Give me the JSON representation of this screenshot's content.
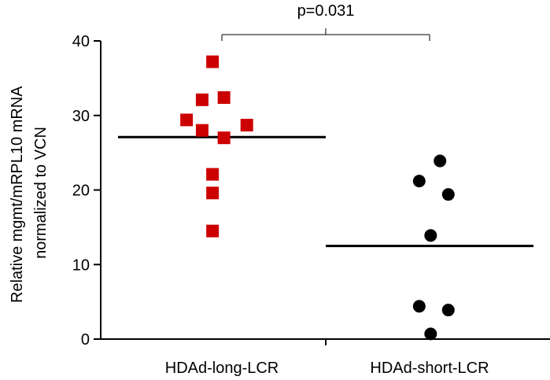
{
  "chart_data": {
    "type": "scatter",
    "title": "",
    "ylabel_lines": [
      "Relative mgmt/mRPL10 mRNA",
      "normalized to VCN"
    ],
    "ylim": [
      0,
      40
    ],
    "yticks": [
      0,
      10,
      20,
      30,
      40
    ],
    "ytick_labels": [
      "0",
      "10",
      "20",
      "30",
      "40"
    ],
    "grid": false,
    "categories": [
      "HDAd-long-LCR",
      "HDAd-short-LCR"
    ],
    "series": [
      {
        "category": "HDAd-long-LCR",
        "marker": "square",
        "color": "#cc0000",
        "points": [
          {
            "x": -0.34,
            "y": 29.4
          },
          {
            "x": -0.19,
            "y": 32.1
          },
          {
            "x": -0.09,
            "y": 37.2
          },
          {
            "x": 0.02,
            "y": 32.4
          },
          {
            "x": -0.19,
            "y": 28.0
          },
          {
            "x": 0.02,
            "y": 27.0
          },
          {
            "x": 0.24,
            "y": 28.7
          },
          {
            "x": -0.09,
            "y": 22.1
          },
          {
            "x": -0.09,
            "y": 19.6
          },
          {
            "x": -0.09,
            "y": 14.5
          }
        ],
        "mean": 27.1
      },
      {
        "category": "HDAd-short-LCR",
        "marker": "circle",
        "color": "#000000",
        "points": [
          {
            "x": 0.1,
            "y": 23.9
          },
          {
            "x": -0.1,
            "y": 21.2
          },
          {
            "x": 0.18,
            "y": 19.4
          },
          {
            "x": 0.01,
            "y": 13.9
          },
          {
            "x": -0.1,
            "y": 4.4
          },
          {
            "x": 0.18,
            "y": 3.9
          },
          {
            "x": 0.01,
            "y": 0.7
          }
        ],
        "mean": 12.5
      }
    ],
    "annotation": {
      "text": "p=0.031",
      "between": [
        "HDAd-long-LCR",
        "HDAd-short-LCR"
      ]
    }
  }
}
